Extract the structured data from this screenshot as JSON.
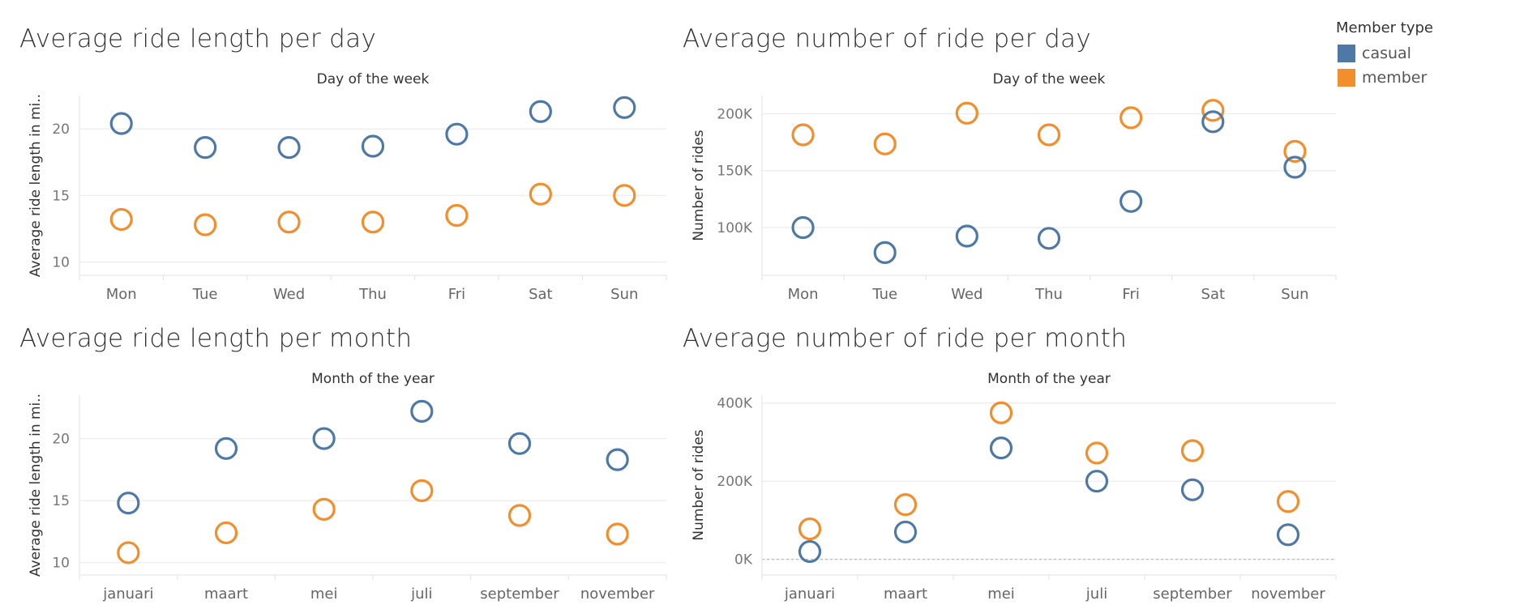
{
  "legend": {
    "title": "Member type",
    "items": [
      {
        "label": "casual",
        "color": "#4e79a7"
      },
      {
        "label": "member",
        "color": "#f28e2b"
      }
    ]
  },
  "chart_data": [
    {
      "type": "scatter",
      "title": "Average ride length per day",
      "xlabel": "Day of the week",
      "ylabel": "Average ride length in mi..",
      "categories": [
        "Mon",
        "Tue",
        "Wed",
        "Thu",
        "Fri",
        "Sat",
        "Sun"
      ],
      "ylim": [
        9,
        22.5
      ],
      "yticks": [
        10,
        15,
        20
      ],
      "ytick_labels": [
        "10",
        "15",
        "20"
      ],
      "grid": true,
      "series": [
        {
          "name": "casual",
          "values": [
            20.4,
            18.6,
            18.6,
            18.7,
            19.6,
            21.3,
            21.6
          ]
        },
        {
          "name": "member",
          "values": [
            13.2,
            12.8,
            13.0,
            13.0,
            13.5,
            15.1,
            15.0
          ]
        }
      ]
    },
    {
      "type": "scatter",
      "title": "Average number of ride per day",
      "xlabel": "Day of the week",
      "ylabel": "Number of rides",
      "categories": [
        "Mon",
        "Tue",
        "Wed",
        "Thu",
        "Fri",
        "Sat",
        "Sun"
      ],
      "ylim": [
        58000,
        216000
      ],
      "yticks": [
        100000,
        150000,
        200000
      ],
      "ytick_labels": [
        "100K",
        "150K",
        "200K"
      ],
      "grid": true,
      "series": [
        {
          "name": "casual",
          "values": [
            100000,
            78000,
            92500,
            90500,
            123000,
            193000,
            153000
          ]
        },
        {
          "name": "member",
          "values": [
            181500,
            173500,
            200500,
            181500,
            196500,
            203000,
            167000
          ]
        }
      ]
    },
    {
      "type": "scatter",
      "title": "Average ride length per month",
      "xlabel": "Month of the year",
      "ylabel": "Average ride length in mi..",
      "categories": [
        "januari",
        "maart",
        "mei",
        "juli",
        "september",
        "november"
      ],
      "ylim": [
        9,
        23.5
      ],
      "yticks": [
        10,
        15,
        20
      ],
      "ytick_labels": [
        "10",
        "15",
        "20"
      ],
      "grid": true,
      "series": [
        {
          "name": "casual",
          "values": [
            14.8,
            19.2,
            20.0,
            22.2,
            19.6,
            18.3
          ]
        },
        {
          "name": "member",
          "values": [
            10.8,
            12.4,
            14.3,
            15.8,
            13.8,
            12.3
          ]
        }
      ]
    },
    {
      "type": "scatter",
      "title": "Average number of ride per month",
      "xlabel": "Month of the year",
      "ylabel": "Number of rides",
      "categories": [
        "januari",
        "maart",
        "mei",
        "juli",
        "september",
        "november"
      ],
      "ylim": [
        -40000,
        420000
      ],
      "yticks": [
        0,
        200000,
        400000
      ],
      "ytick_labels": [
        "0K",
        "200K",
        "400K"
      ],
      "grid": true,
      "series": [
        {
          "name": "casual",
          "values": [
            20000,
            70000,
            285000,
            200000,
            178000,
            63000
          ]
        },
        {
          "name": "member",
          "values": [
            78000,
            140000,
            375000,
            272000,
            278000,
            148000
          ]
        }
      ]
    }
  ]
}
